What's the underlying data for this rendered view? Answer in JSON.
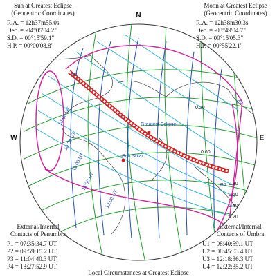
{
  "sun": {
    "title": "Sun at Greatest Eclipse",
    "subtitle": "(Geocentric Coordinates)",
    "lines": [
      "R.A. = 12h37m55.0s",
      "Dec. = -04°05'04.2\"",
      "S.D. = 00°15'59.1\"",
      "H.P. = 00°00'08.8\""
    ]
  },
  "moon": {
    "title": "Moon at Greatest Eclipse",
    "subtitle": "(Geocentric Coordinates)",
    "lines": [
      "R.A. = 12h38m30.3s",
      "Dec. = -03°49'04.7\"",
      "S.D. = 00°15'05.3\"",
      "H.P. = 00°55'22.1\""
    ]
  },
  "compass": {
    "north": "N",
    "west": "W",
    "east": "E"
  },
  "penumbra": {
    "title": "External/Internal",
    "subtitle": "Contacts of Penumbra",
    "lines": [
      "P1 = 07:35:34.7 UT",
      "P2 = 09:59:15.2 UT",
      "P3 = 11:04:40.3 UT",
      "P4 = 13:27:52.9 UT"
    ]
  },
  "umbra": {
    "title": "External/Internal",
    "subtitle": "Contacts of Umbra",
    "lines": [
      "U1 = 08:40:59.1 UT",
      "U2 = 08:45:03.4 UT",
      "U3 = 12:18:36.3 UT",
      "U4 = 12:22:35.2 UT"
    ]
  },
  "map_labels": {
    "contacts": [
      "P1",
      "P3",
      "P4"
    ],
    "greatest": "Greatest Eclipse",
    "sub_solar": "Sub Solar",
    "times": [
      "10:00 UT",
      "10:30 UT",
      "11:00 UT",
      "11:30 UT",
      "12:00 UT"
    ],
    "magnitudes": [
      "0.20",
      "0.60",
      "0.80",
      "0.60",
      "0.40",
      "0.20"
    ]
  },
  "footer": "Local Circumstances at Greatest Eclipse"
}
